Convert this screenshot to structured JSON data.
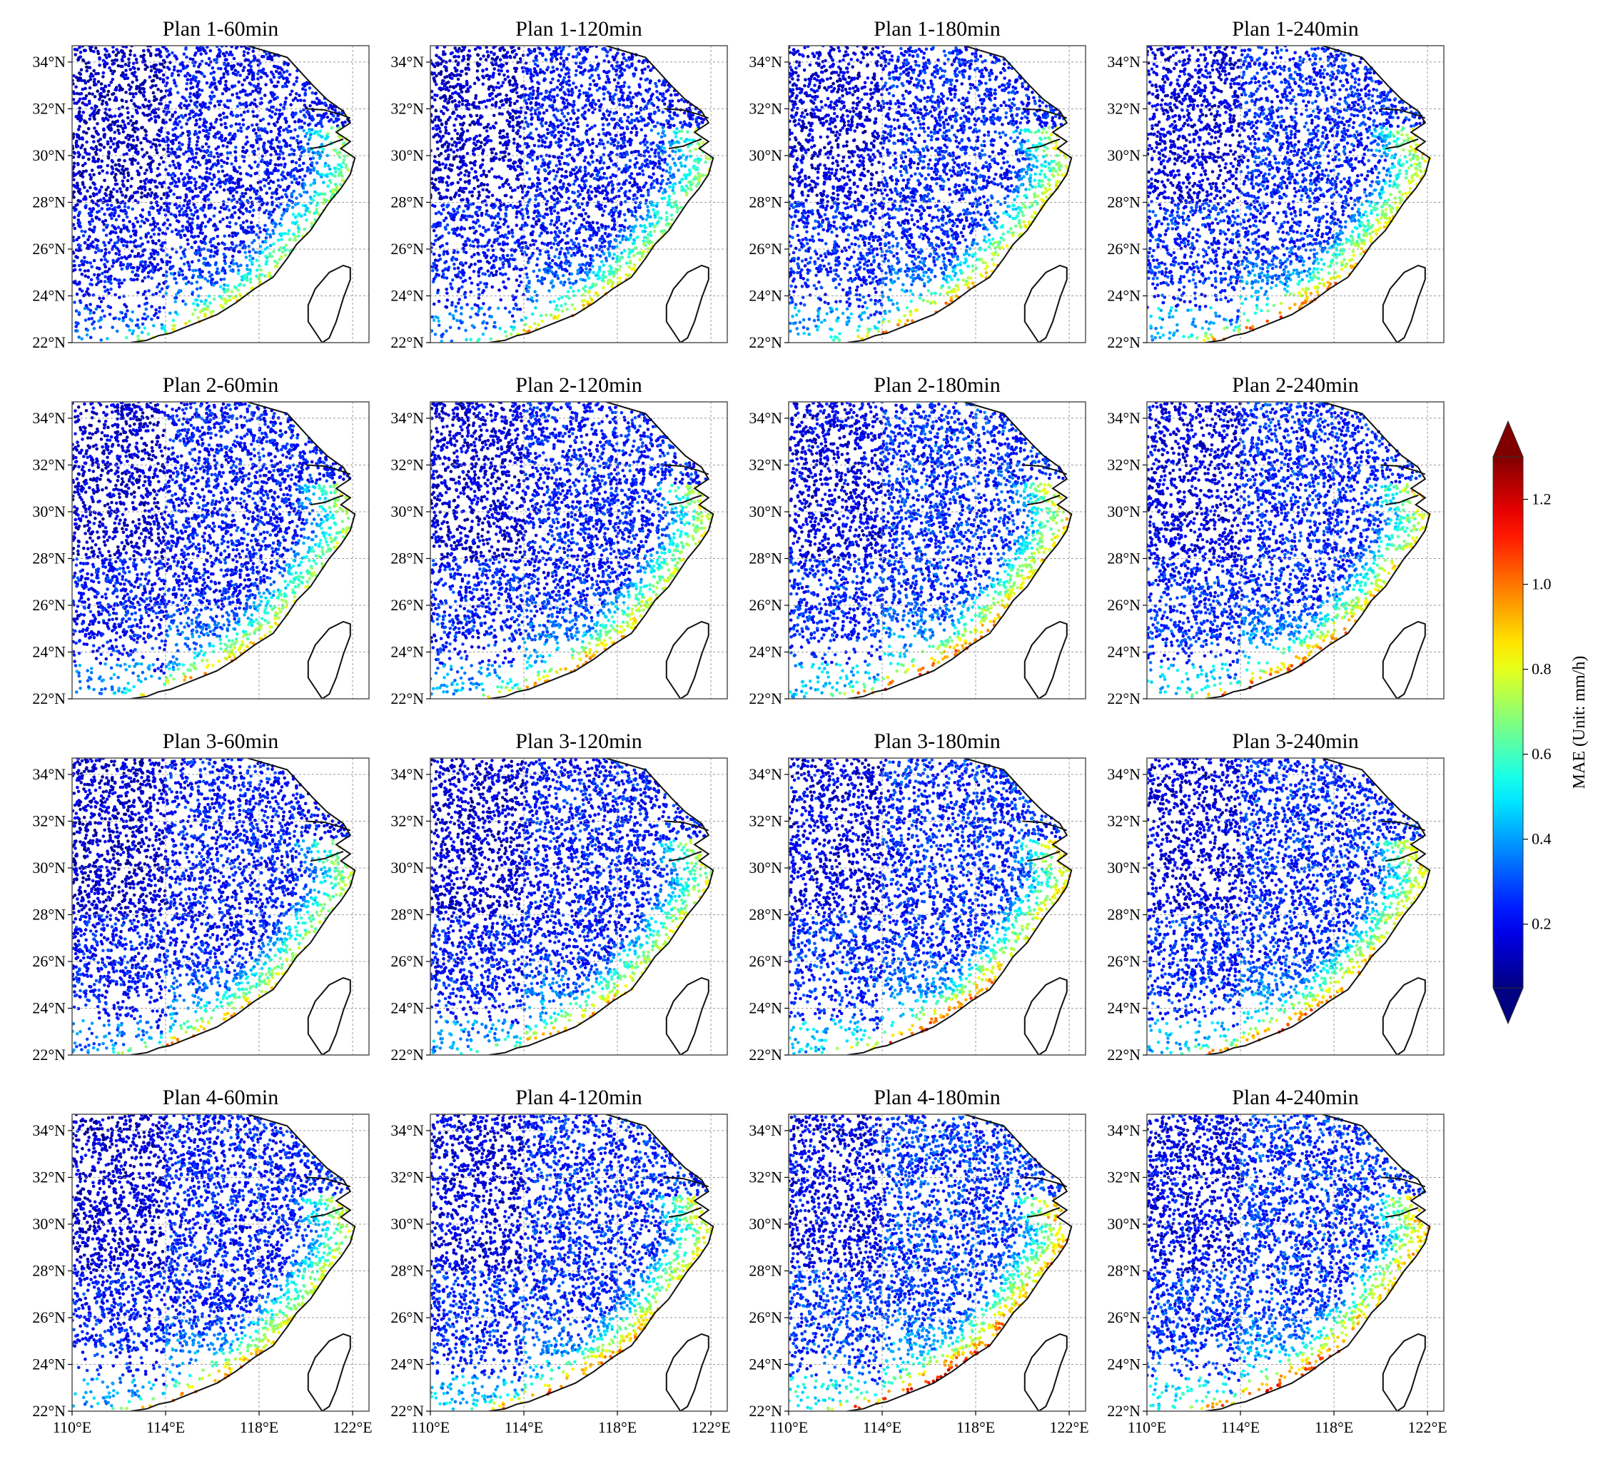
{
  "figure": {
    "panels": [
      {
        "title": "Plan 1-60min",
        "intensity": 0.3
      },
      {
        "title": "Plan 1-120min",
        "intensity": 0.36
      },
      {
        "title": "Plan 1-180min",
        "intensity": 0.46
      },
      {
        "title": "Plan 1-240min",
        "intensity": 0.5
      },
      {
        "title": "Plan 2-60min",
        "intensity": 0.4
      },
      {
        "title": "Plan 2-120min",
        "intensity": 0.44
      },
      {
        "title": "Plan 2-180min",
        "intensity": 0.55
      },
      {
        "title": "Plan 2-240min",
        "intensity": 0.52
      },
      {
        "title": "Plan 3-60min",
        "intensity": 0.38
      },
      {
        "title": "Plan 3-120min",
        "intensity": 0.42
      },
      {
        "title": "Plan 3-180min",
        "intensity": 0.54
      },
      {
        "title": "Plan 3-240min",
        "intensity": 0.52
      },
      {
        "title": "Plan 4-60min",
        "intensity": 0.44
      },
      {
        "title": "Plan 4-120min",
        "intensity": 0.52
      },
      {
        "title": "Plan 4-180min",
        "intensity": 0.64
      },
      {
        "title": "Plan 4-240min",
        "intensity": 0.62
      }
    ],
    "lat_ticks": [
      "34°N",
      "32°N",
      "30°N",
      "28°N",
      "26°N",
      "24°N",
      "22°N"
    ],
    "lon_ticks": [
      "110°E",
      "114°E",
      "118°E",
      "122°E"
    ],
    "extent": {
      "lon": [
        110,
        122.7
      ],
      "lat": [
        22,
        34.7
      ]
    },
    "colorbar": {
      "label": "MAE (Unit: mm/h)",
      "ticks": [
        "0.2",
        "0.4",
        "0.6",
        "0.8",
        "1.0",
        "1.2"
      ],
      "tick_values": [
        0.2,
        0.4,
        0.6,
        0.8,
        1.0,
        1.2
      ],
      "range": [
        0.05,
        1.3
      ],
      "colormap": "jet",
      "extend": "both"
    }
  }
}
